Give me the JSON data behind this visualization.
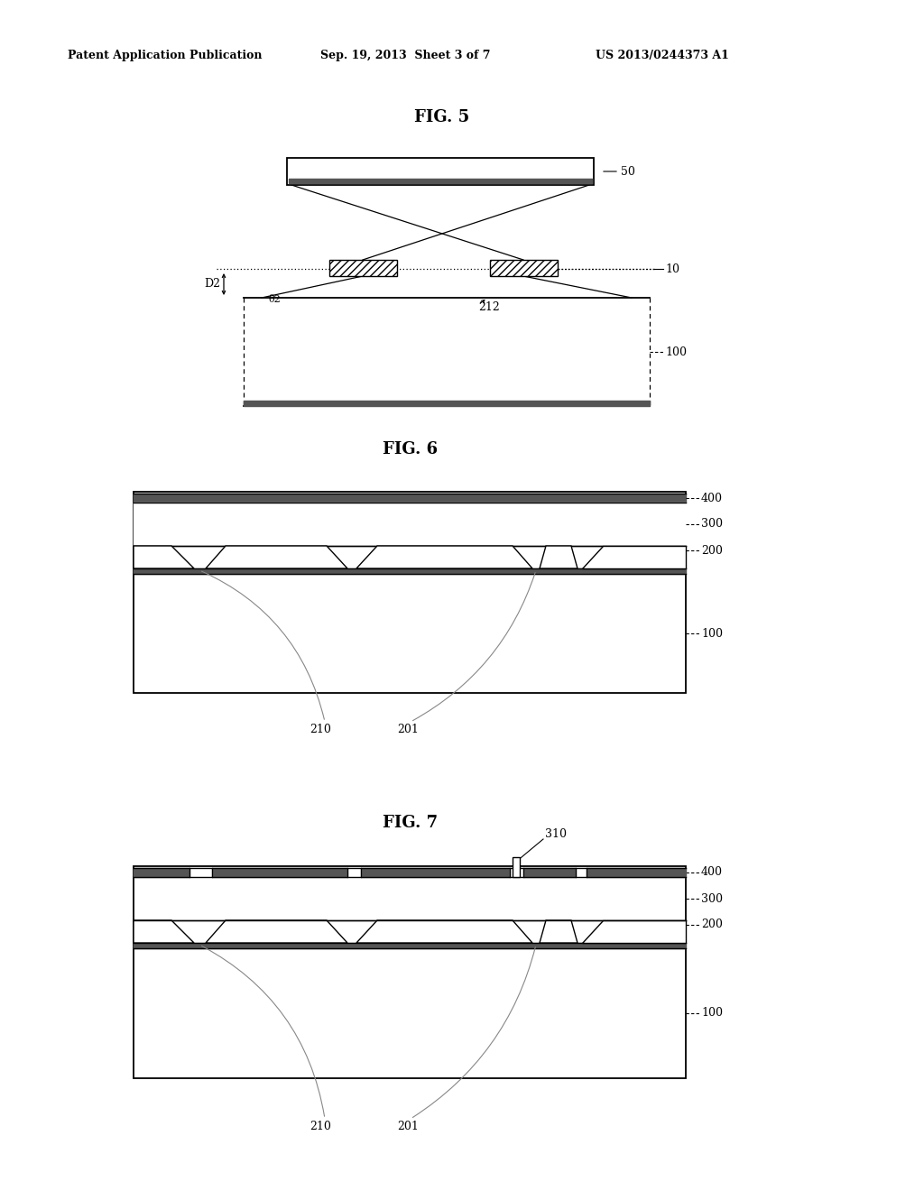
{
  "header_left": "Patent Application Publication",
  "header_center": "Sep. 19, 2013  Sheet 3 of 7",
  "header_right": "US 2013/0244373 A1",
  "bg_color": "#ffffff",
  "line_color": "#000000",
  "fig5_title": "FIG. 5",
  "fig6_title": "FIG. 6",
  "fig7_title": "FIG. 7"
}
